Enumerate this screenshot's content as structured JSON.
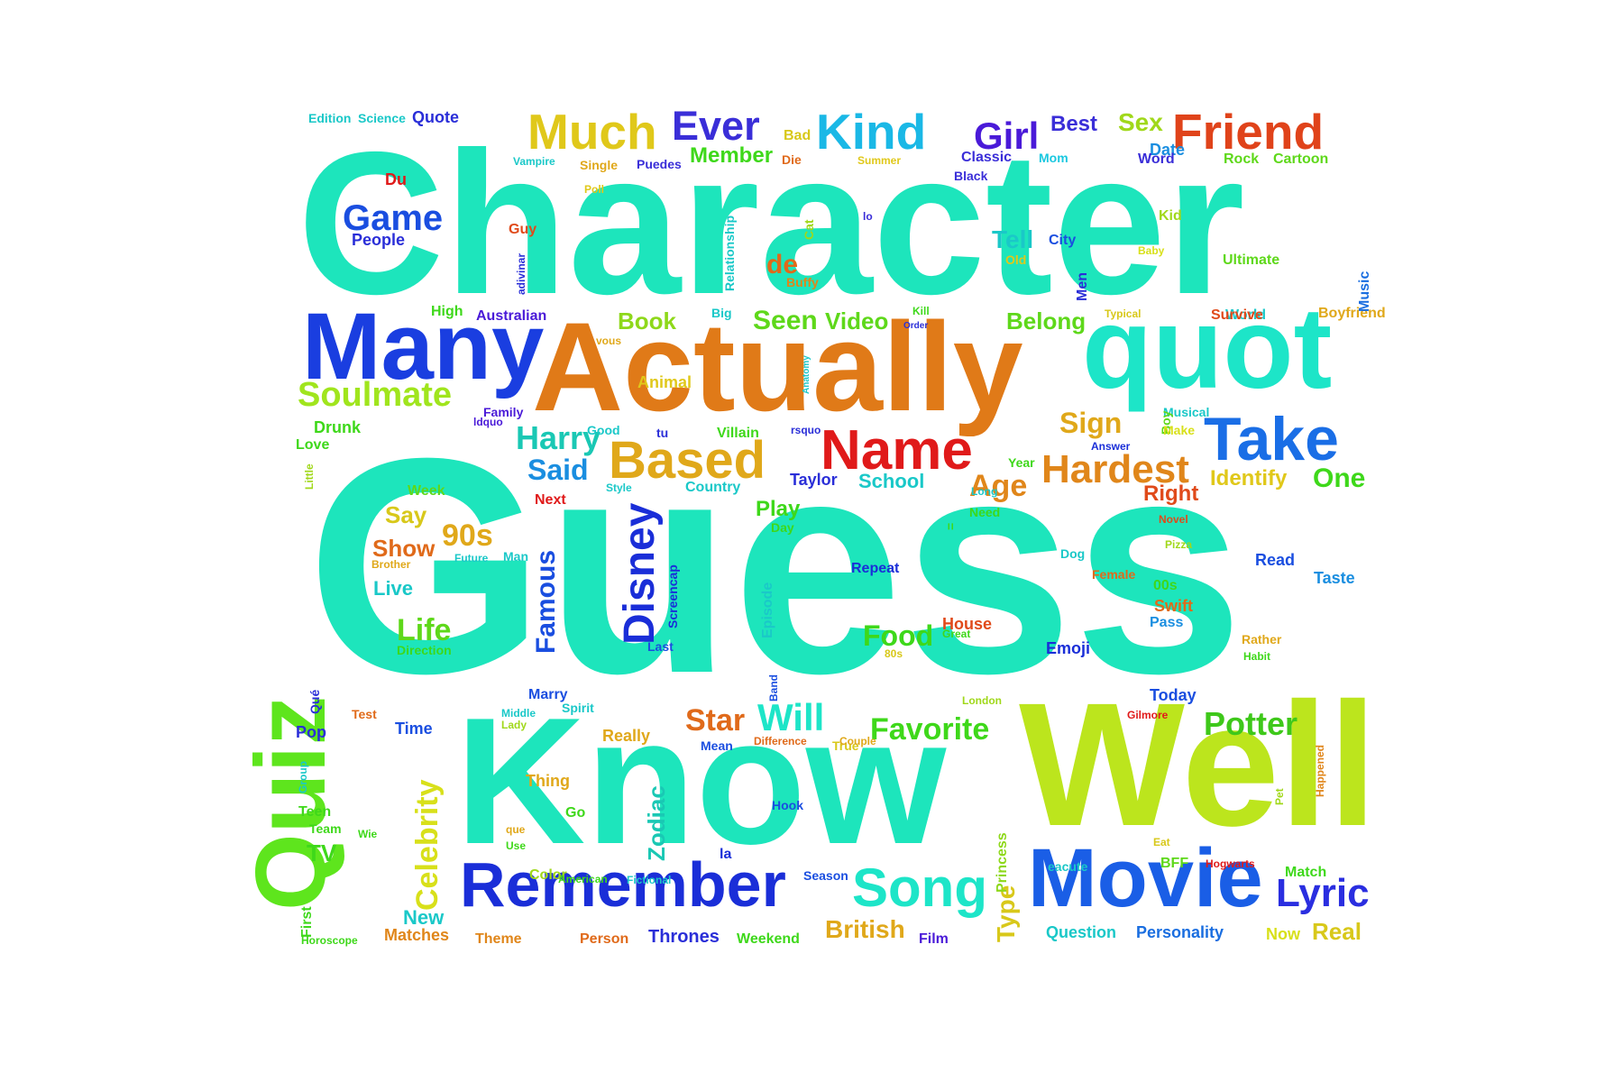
{
  "words": [
    {
      "text": "Character",
      "color": "#1de5bc"
    },
    {
      "text": "Guess",
      "color": "#1de5bc"
    },
    {
      "text": "Know",
      "color": "#1de5bc"
    },
    {
      "text": "Well",
      "color": "#bce51d"
    },
    {
      "text": "Actually",
      "color": "#e07a18"
    },
    {
      "text": "quot",
      "color": "#1de5c8"
    },
    {
      "text": "Many",
      "color": "#1a3ee0"
    },
    {
      "text": "Movie",
      "color": "#1a5ee6"
    },
    {
      "text": "Remember",
      "color": "#1a2ed8"
    },
    {
      "text": "Quiz",
      "color": "#5ee51d"
    },
    {
      "text": "Take",
      "color": "#1a6ee6"
    },
    {
      "text": "Friend",
      "color": "#e0431a"
    },
    {
      "text": "Much",
      "color": "#e0c81a"
    },
    {
      "text": "Kind",
      "color": "#1ab8e6"
    },
    {
      "text": "Name",
      "color": "#e01a1a"
    },
    {
      "text": "Based",
      "color": "#e0a81a"
    },
    {
      "text": "Hardest",
      "color": "#e0861a"
    },
    {
      "text": "Song",
      "color": "#1de5c8"
    },
    {
      "text": "Lyric",
      "color": "#2a2ee0"
    },
    {
      "text": "Disney",
      "color": "#1a2ed8"
    },
    {
      "text": "Ever",
      "color": "#3a2ed8"
    },
    {
      "text": "Girl",
      "color": "#4a1ad8"
    },
    {
      "text": "Soulmate",
      "color": "#a0e51d"
    },
    {
      "text": "Game",
      "color": "#1a4ee0"
    },
    {
      "text": "Potter",
      "color": "#3ec81a"
    },
    {
      "text": "Favorite",
      "color": "#3ed81a"
    },
    {
      "text": "Celebrity",
      "color": "#d8e01a"
    },
    {
      "text": "Harry",
      "color": "#1ac8b4"
    },
    {
      "text": "Star",
      "color": "#e06a1a"
    },
    {
      "text": "Will",
      "color": "#1de5c8"
    },
    {
      "text": "Famous",
      "color": "#1a4ee0"
    },
    {
      "text": "Food",
      "color": "#3ed81a"
    },
    {
      "text": "Age",
      "color": "#e0861a"
    },
    {
      "text": "Said",
      "color": "#1a8ee0"
    },
    {
      "text": "Life",
      "color": "#5ed81a"
    },
    {
      "text": "Sign",
      "color": "#e0a81a"
    },
    {
      "text": "Seen",
      "color": "#5ed81a"
    },
    {
      "text": "Video",
      "color": "#5ed81a"
    },
    {
      "text": "Book",
      "color": "#8ed81a"
    },
    {
      "text": "Tell",
      "color": "#1ac8c8"
    },
    {
      "text": "One",
      "color": "#3ed81a"
    },
    {
      "text": "90s",
      "color": "#e0a81a"
    },
    {
      "text": "British",
      "color": "#e0a81a"
    },
    {
      "text": "Zodiac",
      "color": "#1ac8b4"
    },
    {
      "text": "Type",
      "color": "#d8c81a"
    },
    {
      "text": "Real",
      "color": "#d8c81a"
    },
    {
      "text": "Best",
      "color": "#3a2ed8"
    },
    {
      "text": "Sex",
      "color": "#a0d81a"
    },
    {
      "text": "Member",
      "color": "#3ed81a"
    },
    {
      "text": "Belong",
      "color": "#5ed81a"
    },
    {
      "text": "de",
      "color": "#e06a1a"
    },
    {
      "text": "Right",
      "color": "#e04a1a"
    },
    {
      "text": "Identify",
      "color": "#e0c81a"
    },
    {
      "text": "Show",
      "color": "#e06a1a"
    },
    {
      "text": "Say",
      "color": "#d8c81a"
    },
    {
      "text": "Play",
      "color": "#3ed81a"
    },
    {
      "text": "School",
      "color": "#1ac8c8"
    },
    {
      "text": "Live",
      "color": "#1ac8c8"
    },
    {
      "text": "New",
      "color": "#1ac8c8"
    },
    {
      "text": "TV",
      "color": "#3ed81a"
    },
    {
      "text": "Thrones",
      "color": "#2a2ed8"
    },
    {
      "text": "Personality",
      "color": "#1a6ee0"
    },
    {
      "text": "Question",
      "color": "#1ac8c8"
    },
    {
      "text": "Now",
      "color": "#d8e01a"
    },
    {
      "text": "Emoji",
      "color": "#1a2ed8"
    },
    {
      "text": "Taylor",
      "color": "#2a2ed8"
    },
    {
      "text": "Swift",
      "color": "#e06a1a"
    },
    {
      "text": "Pass",
      "color": "#1a8ee0"
    },
    {
      "text": "Read",
      "color": "#1a4ee0"
    },
    {
      "text": "Taste",
      "color": "#1a8ee0"
    },
    {
      "text": "Today",
      "color": "#1a4ee0"
    },
    {
      "text": "Repeat",
      "color": "#1a2ed8"
    },
    {
      "text": "House",
      "color": "#e04a1a"
    },
    {
      "text": "Really",
      "color": "#e0a81a"
    },
    {
      "text": "Matches",
      "color": "#e0861a"
    },
    {
      "text": "Theme",
      "color": "#e0861a"
    },
    {
      "text": "Person",
      "color": "#e06a1a"
    },
    {
      "text": "Weekend",
      "color": "#3ed81a"
    },
    {
      "text": "Film",
      "color": "#4a1ad8"
    },
    {
      "text": "Match",
      "color": "#3ed81a"
    },
    {
      "text": "BFF",
      "color": "#5ed81a"
    },
    {
      "text": "Princess",
      "color": "#8ed81a"
    },
    {
      "text": "Episode",
      "color": "#1ac8c8"
    },
    {
      "text": "Screencap",
      "color": "#1a2ed8"
    },
    {
      "text": "Direction",
      "color": "#3ed81a"
    },
    {
      "text": "Time",
      "color": "#1a4ee0"
    },
    {
      "text": "Pop",
      "color": "#2a2ed8"
    },
    {
      "text": "Teen",
      "color": "#3ed81a"
    },
    {
      "text": "Team",
      "color": "#3ed81a"
    },
    {
      "text": "Thing",
      "color": "#e0a81a"
    },
    {
      "text": "Go",
      "color": "#3ed81a"
    },
    {
      "text": "Color",
      "color": "#a0d81a"
    },
    {
      "text": "Marry",
      "color": "#1a4ee0"
    },
    {
      "text": "Hook",
      "color": "#1a4ee0"
    },
    {
      "text": "la",
      "color": "#1a2ed8"
    },
    {
      "text": "Mean",
      "color": "#1a4ee0"
    },
    {
      "text": "True",
      "color": "#d8c81a"
    },
    {
      "text": "Season",
      "color": "#1a4ee0"
    },
    {
      "text": "00s",
      "color": "#3ed81a"
    },
    {
      "text": "Female",
      "color": "#e06a1a"
    },
    {
      "text": "Dog",
      "color": "#1ac8c8"
    },
    {
      "text": "Rather",
      "color": "#e0a81a"
    },
    {
      "text": "Habit",
      "color": "#3ed81a"
    },
    {
      "text": "Gilmore",
      "color": "#e01a1a"
    },
    {
      "text": "Hogwarts",
      "color": "#e01a1a"
    },
    {
      "text": "eacute",
      "color": "#1ac8c8"
    },
    {
      "text": "Horoscope",
      "color": "#3ed81a"
    },
    {
      "text": "First",
      "color": "#3ed81a"
    },
    {
      "text": "Group",
      "color": "#1ac8c8"
    },
    {
      "text": "Wie",
      "color": "#3ed81a"
    },
    {
      "text": "Qué",
      "color": "#2a2ed8"
    },
    {
      "text": "Test",
      "color": "#e06a1a"
    },
    {
      "text": "Middle",
      "color": "#1ac8c8"
    },
    {
      "text": "Lady",
      "color": "#a0d81a"
    },
    {
      "text": "que",
      "color": "#e0a81a"
    },
    {
      "text": "Use",
      "color": "#3ed81a"
    },
    {
      "text": "American",
      "color": "#3ed81a"
    },
    {
      "text": "Fictional",
      "color": "#1ac8c8"
    },
    {
      "text": "Difference",
      "color": "#e06a1a"
    },
    {
      "text": "Couple",
      "color": "#e0a81a"
    },
    {
      "text": "London",
      "color": "#a0d81a"
    },
    {
      "text": "80s",
      "color": "#d8c81a"
    },
    {
      "text": "Great",
      "color": "#3ed81a"
    },
    {
      "text": "Band",
      "color": "#1a4ee0"
    },
    {
      "text": "Last",
      "color": "#1a4ee0"
    },
    {
      "text": "Spirit",
      "color": "#1ac8c8"
    },
    {
      "text": "Future",
      "color": "#1ac8c8"
    },
    {
      "text": "Man",
      "color": "#1ac8c8"
    },
    {
      "text": "Brother",
      "color": "#e0a81a"
    },
    {
      "text": "Next",
      "color": "#e01a1a"
    },
    {
      "text": "Week",
      "color": "#5ed81a"
    },
    {
      "text": "Style",
      "color": "#1ac8c8"
    },
    {
      "text": "Country",
      "color": "#1ac8c8"
    },
    {
      "text": "Day",
      "color": "#3ed81a"
    },
    {
      "text": "=",
      "color": "#3ed81a"
    },
    {
      "text": "Need",
      "color": "#3ed81a"
    },
    {
      "text": "Long",
      "color": "#1ac8c8"
    },
    {
      "text": "Year",
      "color": "#3ed81a"
    },
    {
      "text": "Novel",
      "color": "#e04a1a"
    },
    {
      "text": "Pizza",
      "color": "#a0d81a"
    },
    {
      "text": "Pet",
      "color": "#a0d81a"
    },
    {
      "text": "Happened",
      "color": "#e0861a"
    },
    {
      "text": "Eat",
      "color": "#d8c81a"
    },
    {
      "text": "Answer",
      "color": "#1a2ed8"
    },
    {
      "text": "Musical",
      "color": "#1ac8c8"
    },
    {
      "text": "Boy",
      "color": "#5ed81a"
    },
    {
      "text": "Make",
      "color": "#d8e01a"
    },
    {
      "text": "World",
      "color": "#1ac8c8"
    },
    {
      "text": "Survive",
      "color": "#e04a1a"
    },
    {
      "text": "Boyfriend",
      "color": "#e0a81a"
    },
    {
      "text": "Music",
      "color": "#1a6ee0"
    },
    {
      "text": "Typical",
      "color": "#d8c81a"
    },
    {
      "text": "Kill",
      "color": "#3ed81a"
    },
    {
      "text": "Order",
      "color": "#2a2ed8"
    },
    {
      "text": "Men",
      "color": "#2a2ed8"
    },
    {
      "text": "Old",
      "color": "#e0c81a"
    },
    {
      "text": "City",
      "color": "#1a4ee0"
    },
    {
      "text": "Baby",
      "color": "#d8e01a"
    },
    {
      "text": "Ultimate",
      "color": "#5ed81a"
    },
    {
      "text": "Kid",
      "color": "#a0d81a"
    },
    {
      "text": "Date",
      "color": "#1a8ee0"
    },
    {
      "text": "Word",
      "color": "#3a2ed8"
    },
    {
      "text": "Rock",
      "color": "#5ed81a"
    },
    {
      "text": "Cartoon",
      "color": "#5ed81a"
    },
    {
      "text": "Classic",
      "color": "#3a2ed8"
    },
    {
      "text": "Mom",
      "color": "#1ac8e0"
    },
    {
      "text": "Black",
      "color": "#3a2ed8"
    },
    {
      "text": "Die",
      "color": "#e06a1a"
    },
    {
      "text": "Summer",
      "color": "#e0c81a"
    },
    {
      "text": "lo",
      "color": "#3a2ed8"
    },
    {
      "text": "Cat",
      "color": "#a0d81a"
    },
    {
      "text": "Buffy",
      "color": "#e0861a"
    },
    {
      "text": "Relationship",
      "color": "#1ac8c8"
    },
    {
      "text": "Big",
      "color": "#1ac8c8"
    },
    {
      "text": "Anatomy",
      "color": "#1ac8c8"
    },
    {
      "text": "rsquo",
      "color": "#2a2ed8"
    },
    {
      "text": "Animal",
      "color": "#e0c81a"
    },
    {
      "text": "Villain",
      "color": "#3ed81a"
    },
    {
      "text": "tu",
      "color": "#2a2ed8"
    },
    {
      "text": "Good",
      "color": "#1ac8c8"
    },
    {
      "text": "vous",
      "color": "#e0a81a"
    },
    {
      "text": "Australian",
      "color": "#4a1ad8"
    },
    {
      "text": "High",
      "color": "#3ed81a"
    },
    {
      "text": "Family",
      "color": "#4a1ad8"
    },
    {
      "text": "ldquo",
      "color": "#4a1ad8"
    },
    {
      "text": "Drunk",
      "color": "#3ed81a"
    },
    {
      "text": "Love",
      "color": "#3ed81a"
    },
    {
      "text": "Little",
      "color": "#a0d81a"
    },
    {
      "text": "People",
      "color": "#2a2ed8"
    },
    {
      "text": "Du",
      "color": "#e01a1a"
    },
    {
      "text": "Guy",
      "color": "#e04a1a"
    },
    {
      "text": "adivinar",
      "color": "#2a2ed8"
    },
    {
      "text": "Poll",
      "color": "#e0c81a"
    },
    {
      "text": "Vampire",
      "color": "#1ac8c8"
    },
    {
      "text": "Single",
      "color": "#e0a81a"
    },
    {
      "text": "Puedes",
      "color": "#3a2ed8"
    },
    {
      "text": "Bad",
      "color": "#d8c81a"
    },
    {
      "text": "Edition",
      "color": "#1ac8c8"
    },
    {
      "text": "Science",
      "color": "#1ac8c8"
    },
    {
      "text": "Quote",
      "color": "#2a2ed8"
    }
  ]
}
